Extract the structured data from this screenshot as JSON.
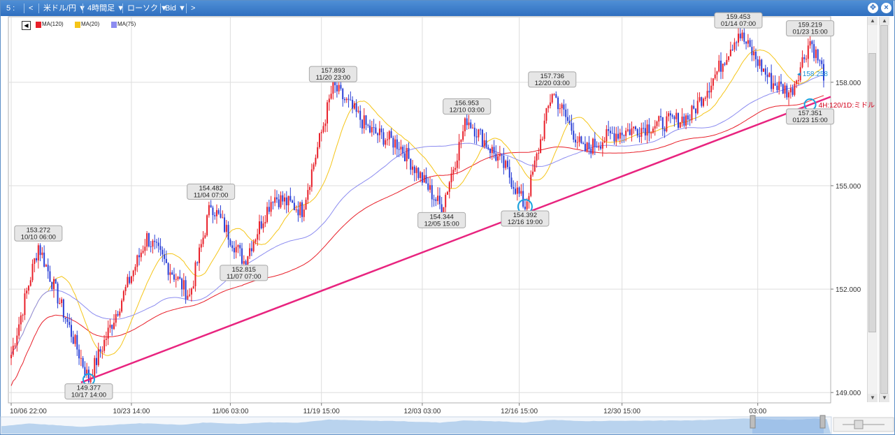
{
  "toolbar": {
    "items": [
      "5 :",
      "<",
      "米ドル/円 ▼",
      "4時間足 ▼",
      "ローソク ▼",
      "Bid ▼",
      ">"
    ]
  },
  "legend": {
    "toggle_glyph": "◀",
    "items": [
      {
        "label": "MA(120)",
        "color": "#e8202a"
      },
      {
        "label": "MA(20)",
        "color": "#f5c518"
      },
      {
        "label": "MA(75)",
        "color": "#8c8cf0"
      }
    ]
  },
  "chart_data": {
    "type": "candlestick",
    "instrument": "米ドル/円",
    "timeframe": "4時間足",
    "price_side": "Bid",
    "ylim": [
      148.7,
      159.9
    ],
    "y_ticks": [
      "158.000",
      "155.000",
      "152.000",
      "149.000"
    ],
    "x_ticks": [
      "10/06 22:00",
      "10/23 14:00",
      "11/06 03:00",
      "11/19 15:00",
      "12/03 03:00",
      "12/16 15:00",
      "12/30 15:00",
      "03:00"
    ],
    "pivots": [
      {
        "price": "153.272",
        "time": "10/10 06:00",
        "kind": "high"
      },
      {
        "price": "149.377",
        "time": "10/17 14:00",
        "kind": "low"
      },
      {
        "price": "154.482",
        "time": "11/04 07:00",
        "kind": "high"
      },
      {
        "price": "152.815",
        "time": "11/07 07:00",
        "kind": "low"
      },
      {
        "price": "157.893",
        "time": "11/20 23:00",
        "kind": "high"
      },
      {
        "price": "154.344",
        "time": "12/05 15:00",
        "kind": "low"
      },
      {
        "price": "156.953",
        "time": "12/10 03:00",
        "kind": "high"
      },
      {
        "price": "154.392",
        "time": "12/16 19:00",
        "kind": "low"
      },
      {
        "price": "157.736",
        "time": "12/20 03:00",
        "kind": "high"
      },
      {
        "price": "159.453",
        "time": "01/14 07:00",
        "kind": "high"
      },
      {
        "price": "159.219",
        "time": "01/23 15:00",
        "kind": "high"
      },
      {
        "price": "157.351",
        "time": "01/23 15:00",
        "kind": "low"
      }
    ],
    "current_price": "158.258",
    "trendline": {
      "from_price": 149.377,
      "to_price": 157.351,
      "color": "#e8247f"
    },
    "annotation": "4H:120/1D:ミドル",
    "series": [
      {
        "name": "MA(120)",
        "color": "#e8202a"
      },
      {
        "name": "MA(20)",
        "color": "#f5c518"
      },
      {
        "name": "MA(75)",
        "color": "#8c8cf0"
      }
    ],
    "colors": {
      "up": "#e8202a",
      "down": "#2a3fd6",
      "grid": "#dddddd"
    }
  }
}
